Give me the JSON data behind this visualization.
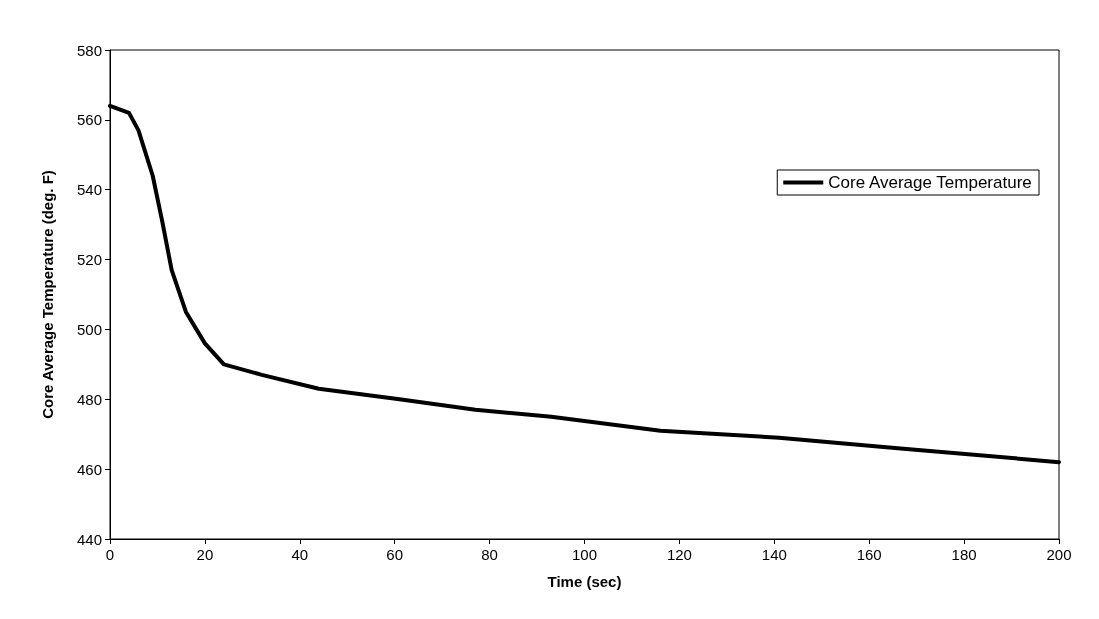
{
  "chart_data": {
    "type": "line",
    "xlabel": "Time (sec)",
    "ylabel": "Core Average Temperature (deg. F)",
    "series": [
      {
        "name": "Core Average Temperature",
        "color": "#000000",
        "x": [
          0,
          4,
          6,
          9,
          11,
          13,
          16,
          20,
          24,
          32,
          44,
          61,
          77,
          93,
          116,
          141,
          166,
          200
        ],
        "values": [
          564,
          562,
          557,
          544,
          531,
          517,
          505,
          496,
          490,
          487,
          483,
          480,
          477,
          475,
          471,
          469,
          466,
          462
        ]
      }
    ],
    "xlim": [
      0,
      200
    ],
    "xticks": [
      0,
      20,
      40,
      60,
      80,
      100,
      120,
      140,
      160,
      180,
      200
    ],
    "ylim": [
      440,
      580
    ],
    "yticks": [
      440,
      460,
      480,
      500,
      520,
      540,
      560,
      580
    ],
    "grid": false,
    "legend": "top right",
    "marker": "none",
    "line_style": "solid"
  }
}
